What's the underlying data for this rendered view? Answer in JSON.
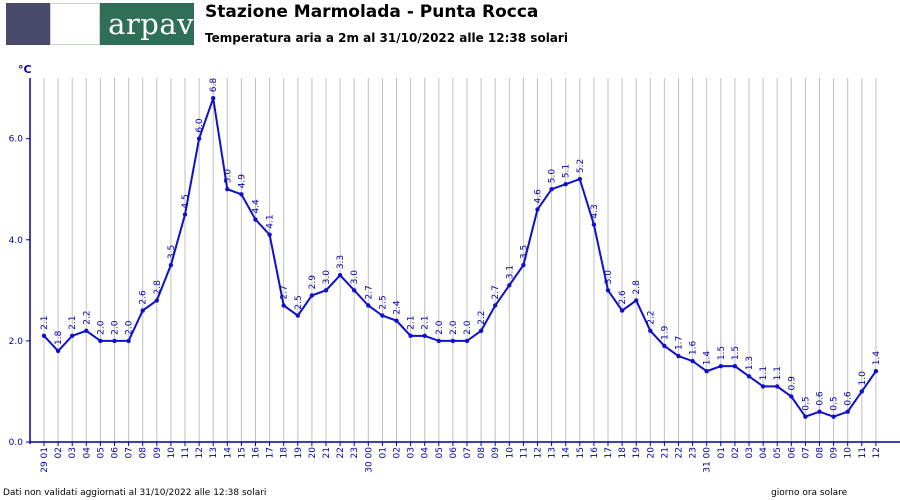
{
  "header": {
    "logo_text": "arpav",
    "title": "Stazione Marmolada - Punta Rocca",
    "subtitle": "Temperatura aria a 2m al 31/10/2022 alle 12:38 solari"
  },
  "footer": {
    "note": "Dati non validati aggiornati al 31/10/2022 alle 12:38 solari",
    "axis_note": "giorno ora solare"
  },
  "colors": {
    "line": "#1010cc",
    "axis": "#0000aa",
    "grid": "#c0c0c0"
  },
  "chart_data": {
    "type": "line",
    "ylabel": "°C",
    "ylim": [
      0,
      7.2
    ],
    "yticks": [
      "0.0",
      "2.0",
      "4.0",
      "6.0"
    ],
    "ytick_values": [
      0,
      2,
      4,
      6
    ],
    "xticks": [
      "29 01",
      "02",
      "03",
      "04",
      "05",
      "06",
      "07",
      "08",
      "09",
      "10",
      "11",
      "12",
      "13",
      "14",
      "15",
      "16",
      "17",
      "18",
      "19",
      "20",
      "21",
      "22",
      "23",
      "30 00",
      "01",
      "02",
      "03",
      "04",
      "05",
      "06",
      "07",
      "08",
      "09",
      "10",
      "11",
      "12",
      "13",
      "14",
      "15",
      "16",
      "17",
      "18",
      "19",
      "20",
      "21",
      "22",
      "23",
      "31 00",
      "01",
      "02",
      "03",
      "04",
      "05",
      "06",
      "07",
      "08",
      "09",
      "10",
      "11",
      "12"
    ],
    "values": [
      2.1,
      1.8,
      2.1,
      2.2,
      2.0,
      2.0,
      2.0,
      2.6,
      2.8,
      3.5,
      4.5,
      6.0,
      6.8,
      5.0,
      4.9,
      4.4,
      4.1,
      2.7,
      2.5,
      2.9,
      3.0,
      3.3,
      3.0,
      2.7,
      2.5,
      2.4,
      2.1,
      2.1,
      2.0,
      2.0,
      2.0,
      2.2,
      2.7,
      3.1,
      3.5,
      4.6,
      5.0,
      5.1,
      5.2,
      4.3,
      3.0,
      2.6,
      2.8,
      2.2,
      1.9,
      1.7,
      1.6,
      1.4,
      1.5,
      1.5,
      1.3,
      1.1,
      1.1,
      0.9,
      0.5,
      0.6,
      0.5,
      0.6,
      1.0,
      1.4
    ],
    "labels": [
      "2.1",
      "1.8",
      "2.1",
      "2.2",
      "2.0",
      "2.0",
      "2.0",
      "2.6",
      "2.8",
      "3.5",
      "4.5",
      "6.0",
      "6.8",
      "5.0",
      "4.9",
      "4.4",
      "4.1",
      "2.7",
      "2.5",
      "2.9",
      "3.0",
      "3.3",
      "3.0",
      "2.7",
      "2.5",
      "2.4",
      "2.1",
      "2.1",
      "2.0",
      "2.0",
      "2.0",
      "2.2",
      "2.7",
      "3.1",
      "3.5",
      "4.6",
      "5.0",
      "5.1",
      "5.2",
      "4.3",
      "3.0",
      "2.6",
      "2.8",
      "2.2",
      "1.9",
      "1.7",
      "1.6",
      "1.4",
      "1.5",
      "1.5",
      "1.3",
      "1.1",
      "1.1",
      "0.9",
      "0.5",
      "0.6",
      "0.5",
      "0.6",
      "1.0",
      "1.4"
    ],
    "grid": true
  }
}
